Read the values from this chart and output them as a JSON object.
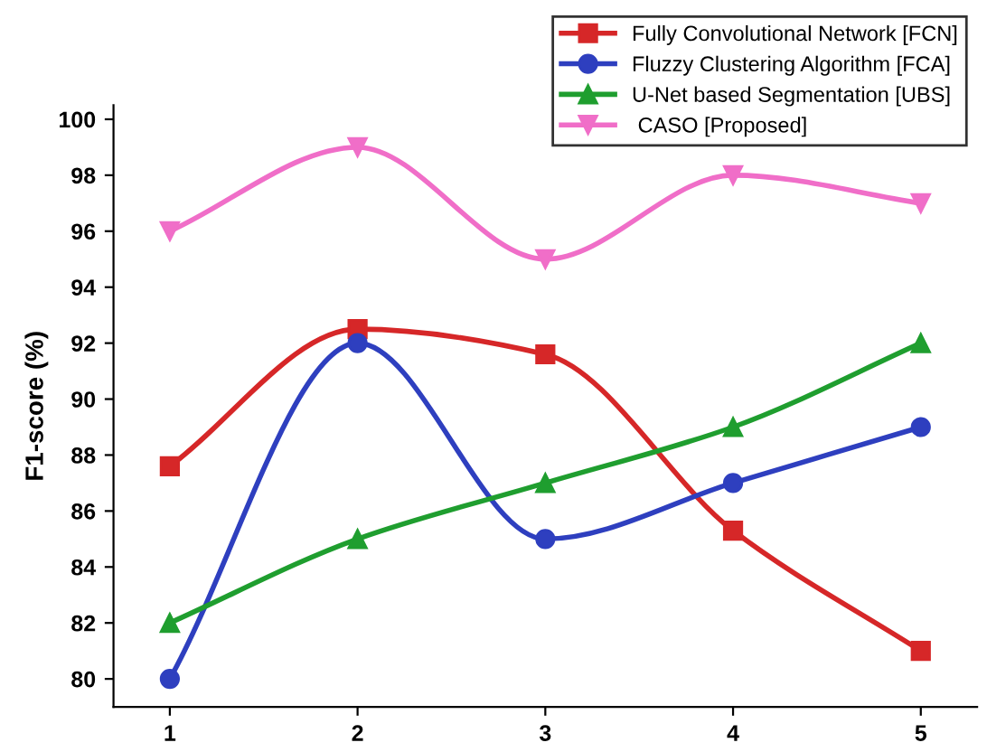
{
  "chart_data": {
    "type": "line",
    "ylabel": "F1-score (%)",
    "x": [
      1,
      2,
      3,
      4,
      5
    ],
    "xlim": [
      0.7,
      5.3
    ],
    "xticks": [
      1,
      2,
      3,
      4,
      5
    ],
    "ylim": [
      79,
      100.5
    ],
    "yticks": [
      80,
      82,
      84,
      86,
      88,
      90,
      92,
      94,
      96,
      98,
      100
    ],
    "legend": "top right",
    "grid": false,
    "series": [
      {
        "name": "Fully Convolutional Network [FCN]",
        "color": "#d62728",
        "marker": "square",
        "values": [
          87.6,
          92.5,
          91.6,
          85.3,
          81
        ]
      },
      {
        "name": "Fluzzy Clustering Algorithm [FCA]",
        "color": "#2e3fbf",
        "marker": "circle",
        "values": [
          80,
          92,
          85,
          87,
          89
        ]
      },
      {
        "name": "U-Net based Segmentation [UBS]",
        "color": "#1f9e2f",
        "marker": "triangle",
        "values": [
          82,
          85,
          87,
          89,
          92
        ]
      },
      {
        "name": " CASO [Proposed]",
        "color": "#f06ec8",
        "marker": "triangle_down",
        "values": [
          96,
          99,
          95,
          98,
          97
        ]
      }
    ]
  }
}
